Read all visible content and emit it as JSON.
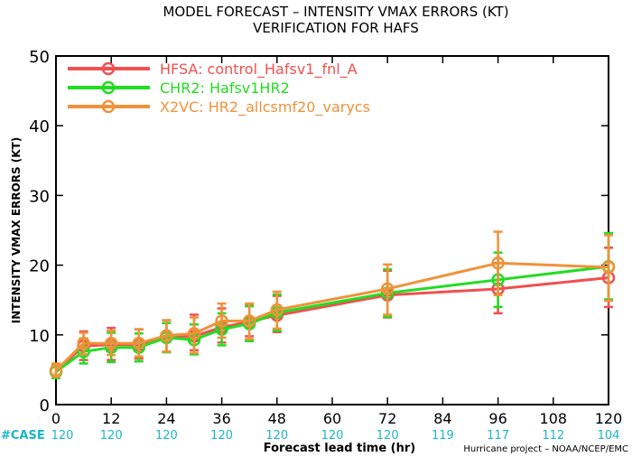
{
  "chart_data": {
    "type": "line",
    "title": "MODEL FORECAST – INTENSITY VMAX ERRORS (KT)",
    "subtitle": "VERIFICATION FOR HAFS",
    "xlabel": "Forecast lead time (hr)",
    "ylabel": "INTENSITY VMAX ERRORS (KT)",
    "xlim": [
      0,
      120
    ],
    "ylim": [
      0,
      50
    ],
    "xticks": [
      0,
      12,
      24,
      36,
      48,
      60,
      72,
      84,
      96,
      108,
      120
    ],
    "yticks": [
      0,
      10,
      20,
      30,
      40,
      50
    ],
    "legend_position": "top-left",
    "grid": false,
    "case_label": "#CASE",
    "case_x": [
      0,
      12,
      24,
      36,
      48,
      60,
      72,
      84,
      96,
      108,
      120
    ],
    "case_counts": [
      "120",
      "120",
      "120",
      "120",
      "120",
      "120",
      "120",
      "119",
      "117",
      "112",
      "104"
    ],
    "credit": "Hurricane project – NOAA/NCEP/EMC",
    "x": [
      0,
      6,
      12,
      18,
      24,
      30,
      36,
      42,
      48,
      72,
      96,
      120
    ],
    "series": [
      {
        "name": "HFSA: control_Hafsv1_fnl_A",
        "color": "#f05050",
        "values": [
          4.8,
          8.4,
          8.6,
          8.6,
          9.8,
          9.8,
          11.1,
          11.9,
          12.8,
          15.7,
          16.6,
          18.2
        ],
        "err_low": [
          3.9,
          6.4,
          6.4,
          6.6,
          7.6,
          7.8,
          8.9,
          9.8,
          10.4,
          12.5,
          13.1,
          14.0
        ],
        "err_high": [
          5.8,
          10.5,
          11.0,
          10.8,
          12.1,
          12.9,
          13.8,
          14.2,
          15.6,
          19.2,
          20.3,
          22.5
        ]
      },
      {
        "name": "CHR2: Hafsv1HR2",
        "color": "#22dd22",
        "values": [
          4.7,
          7.6,
          8.2,
          8.2,
          9.6,
          9.3,
          10.8,
          11.6,
          13.2,
          16.0,
          17.9,
          19.8
        ],
        "err_low": [
          3.8,
          5.9,
          6.1,
          6.2,
          7.5,
          7.2,
          8.5,
          9.1,
          10.6,
          12.6,
          14.0,
          15.1
        ],
        "err_high": [
          5.7,
          9.5,
          10.3,
          10.2,
          11.7,
          11.5,
          13.1,
          14.1,
          15.8,
          19.4,
          21.8,
          24.6
        ]
      },
      {
        "name": "X2VC: HR2_allcsmf20_varycs",
        "color": "#f0923a",
        "values": [
          4.9,
          8.8,
          8.8,
          8.8,
          9.9,
          10.2,
          12.0,
          12.0,
          13.6,
          16.6,
          20.3,
          19.7
        ],
        "err_low": [
          4.0,
          7.2,
          7.1,
          6.9,
          7.6,
          7.4,
          9.6,
          9.4,
          10.9,
          12.9,
          15.7,
          14.9
        ],
        "err_high": [
          5.9,
          10.3,
          10.6,
          10.8,
          12.1,
          12.5,
          14.5,
          14.5,
          16.2,
          20.1,
          24.8,
          24.3
        ]
      }
    ]
  }
}
